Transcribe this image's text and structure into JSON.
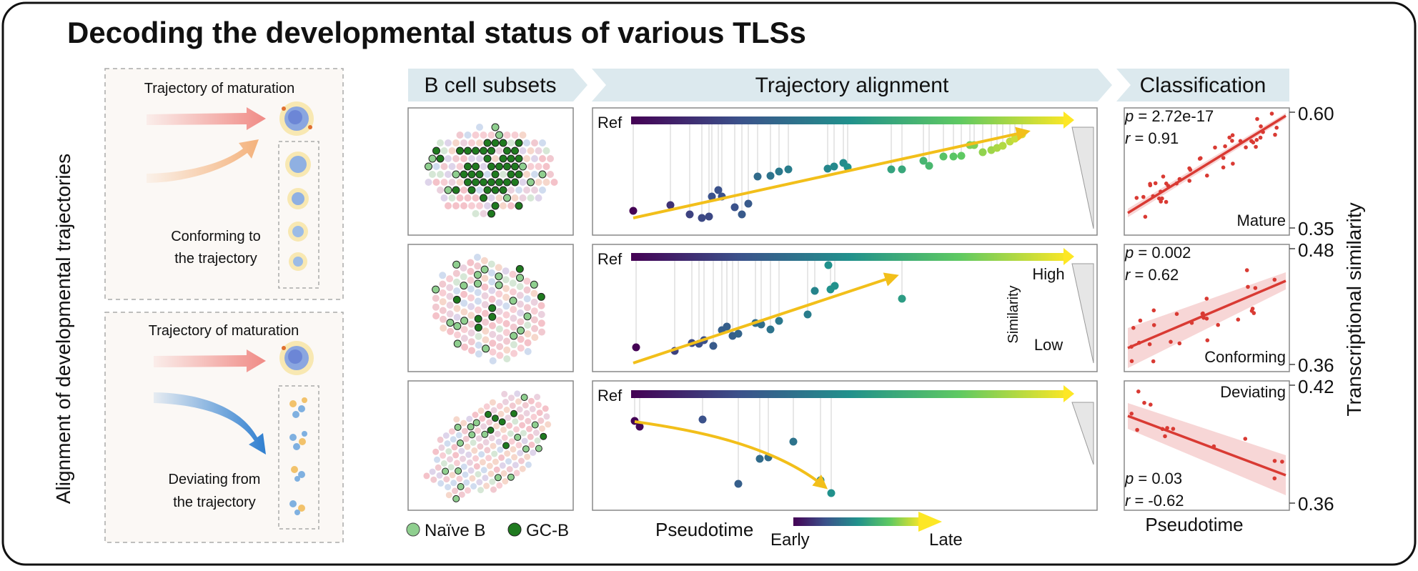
{
  "title": "Decoding the developmental status of various TLSs",
  "left_panel": {
    "vertical_label": "Alignment of developmental trajectories",
    "top_box": {
      "header": "Trajectory of maturation",
      "caption_line1": "Conforming to",
      "caption_line2": "the trajectory"
    },
    "bottom_box": {
      "header": "Trajectory of maturation",
      "caption_line1": "Deviating from",
      "caption_line2": "the trajectory"
    }
  },
  "banners": {
    "b_cell": "B cell subsets",
    "trajectory": "Trajectory alignment",
    "classification": "Classification"
  },
  "ref_label": "Ref",
  "similarity": {
    "title": "Similarity",
    "high": "High",
    "low": "Low"
  },
  "legend": {
    "naive": "Naïve B",
    "gcb": "GC-B"
  },
  "pseudotime": {
    "label": "Pseudotime",
    "early": "Early",
    "late": "Late"
  },
  "classification": {
    "y_axis_label": "Transcriptional similarity",
    "x_axis_label": "Pseudotime",
    "panels": [
      {
        "p_label": "p",
        "p_value": "= 2.72e-17",
        "r_label": "r",
        "r_value": "= 0.91",
        "class": "Mature",
        "y_top": "0.60",
        "y_bottom": "0.35"
      },
      {
        "p_label": "p",
        "p_value": "= 0.002",
        "r_label": "r",
        "r_value": "= 0.62",
        "class": "Conforming",
        "y_top": "0.48",
        "y_bottom": "0.36"
      },
      {
        "p_label": "p",
        "p_value": "= 0.03",
        "r_label": "r",
        "r_value": "= -0.62",
        "class": "Deviating",
        "y_top": "0.42",
        "y_bottom": "0.36"
      }
    ]
  },
  "colors": {
    "banner": "#dce9ee",
    "regression": "#d93a33",
    "ci_band": "#f6cfcf",
    "arrow_yellow": "#f2bf1a",
    "naive": "#8fcf8f",
    "gcb": "#1f7a1f",
    "red_arrow": "#f08b86",
    "orange_arrow": "#f4b27c",
    "blue_arrow": "#2f7fd0"
  }
}
